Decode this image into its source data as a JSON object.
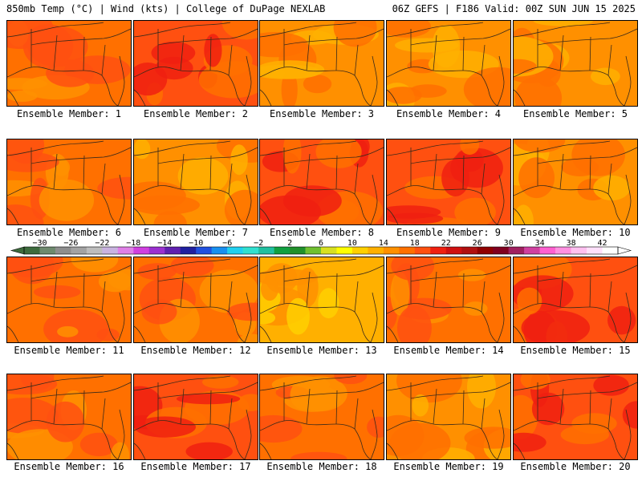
{
  "header": {
    "left_title": "850mb Temp (°C) | Wind (kts) | College of DuPage NEXLAB",
    "right_title": "06Z GEFS | F186 Valid: 00Z SUN JUN 15 2025"
  },
  "label_prefix": "Ensemble Member: ",
  "members": [
    {
      "id": 1,
      "label": "Ensemble Member: 1",
      "tone": "warm"
    },
    {
      "id": 2,
      "label": "Ensemble Member: 2",
      "tone": "hot"
    },
    {
      "id": 3,
      "label": "Ensemble Member: 3",
      "tone": "mild"
    },
    {
      "id": 4,
      "label": "Ensemble Member: 4",
      "tone": "mild"
    },
    {
      "id": 5,
      "label": "Ensemble Member: 5",
      "tone": "mild"
    },
    {
      "id": 6,
      "label": "Ensemble Member: 6",
      "tone": "warm"
    },
    {
      "id": 7,
      "label": "Ensemble Member: 7",
      "tone": "mild"
    },
    {
      "id": 8,
      "label": "Ensemble Member: 8",
      "tone": "hot"
    },
    {
      "id": 9,
      "label": "Ensemble Member: 9",
      "tone": "hot"
    },
    {
      "id": 10,
      "label": "Ensemble Member: 10",
      "tone": "mild"
    },
    {
      "id": 11,
      "label": "Ensemble Member: 11",
      "tone": "warm"
    },
    {
      "id": 12,
      "label": "Ensemble Member: 12",
      "tone": "warm"
    },
    {
      "id": 13,
      "label": "Ensemble Member: 13",
      "tone": "cool"
    },
    {
      "id": 14,
      "label": "Ensemble Member: 14",
      "tone": "warm"
    },
    {
      "id": 15,
      "label": "Ensemble Member: 15",
      "tone": "hot"
    },
    {
      "id": 16,
      "label": "Ensemble Member: 16",
      "tone": "warm"
    },
    {
      "id": 17,
      "label": "Ensemble Member: 17",
      "tone": "hot"
    },
    {
      "id": 18,
      "label": "Ensemble Member: 18",
      "tone": "warm"
    },
    {
      "id": 19,
      "label": "Ensemble Member: 19",
      "tone": "mild"
    },
    {
      "id": 20,
      "label": "Ensemble Member: 20",
      "tone": "hot"
    }
  ],
  "colorbar": {
    "min": -32,
    "max": 44,
    "labels": [
      -30,
      -26,
      -22,
      -18,
      -14,
      -10,
      -6,
      -2,
      2,
      6,
      10,
      14,
      18,
      22,
      26,
      30,
      34,
      38,
      42
    ],
    "colors": [
      "#3d6b3d",
      "#6e8a6e",
      "#8e8e8e",
      "#a3a3a3",
      "#bdbdbd",
      "#c9b3e0",
      "#e080e8",
      "#d040e0",
      "#9b30d0",
      "#6020b0",
      "#2020a0",
      "#2050e0",
      "#1890f0",
      "#20d0f0",
      "#30e0d0",
      "#20c0a0",
      "#10a040",
      "#20902a",
      "#70c030",
      "#d8e020",
      "#ffff00",
      "#ffd000",
      "#ffb000",
      "#ff9000",
      "#ff7000",
      "#ff5010",
      "#f02010",
      "#d01010",
      "#b01010",
      "#900000",
      "#800020",
      "#a02060",
      "#d040a0",
      "#ff60d0",
      "#ff90e0",
      "#ffc0f0",
      "#ffe0fa",
      "#ffffff"
    ],
    "tone_colors": {
      "cool": [
        "#ffd000",
        "#ffb000",
        "#ff9000"
      ],
      "mild": [
        "#ffb000",
        "#ff9000",
        "#ff7000"
      ],
      "warm": [
        "#ff9000",
        "#ff7000",
        "#ff5010"
      ],
      "hot": [
        "#ff7000",
        "#ff5010",
        "#f02010"
      ]
    }
  }
}
